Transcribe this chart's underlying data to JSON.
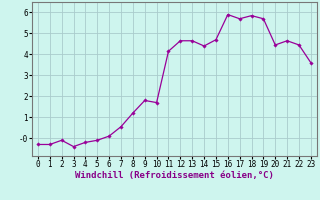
{
  "x": [
    0,
    1,
    2,
    3,
    4,
    5,
    6,
    7,
    8,
    9,
    10,
    11,
    12,
    13,
    14,
    15,
    16,
    17,
    18,
    19,
    20,
    21,
    22,
    23
  ],
  "y": [
    -0.3,
    -0.3,
    -0.1,
    -0.4,
    -0.2,
    -0.1,
    0.1,
    0.55,
    1.2,
    1.8,
    1.7,
    4.15,
    4.65,
    4.65,
    4.4,
    4.7,
    5.9,
    5.7,
    5.85,
    5.7,
    4.45,
    4.65,
    4.45,
    3.6
  ],
  "line_color": "#990099",
  "marker": "D",
  "marker_size": 1.8,
  "bg_color": "#cef5ee",
  "grid_color": "#aacccc",
  "xlabel": "Windchill (Refroidissement éolien,°C)",
  "xlim": [
    -0.5,
    23.5
  ],
  "ylim": [
    -0.85,
    6.5
  ],
  "yticks": [
    0,
    1,
    2,
    3,
    4,
    5,
    6
  ],
  "xticks": [
    0,
    1,
    2,
    3,
    4,
    5,
    6,
    7,
    8,
    9,
    10,
    11,
    12,
    13,
    14,
    15,
    16,
    17,
    18,
    19,
    20,
    21,
    22,
    23
  ],
  "tick_fontsize": 5.5,
  "xlabel_fontsize": 6.5,
  "line_width": 0.9
}
